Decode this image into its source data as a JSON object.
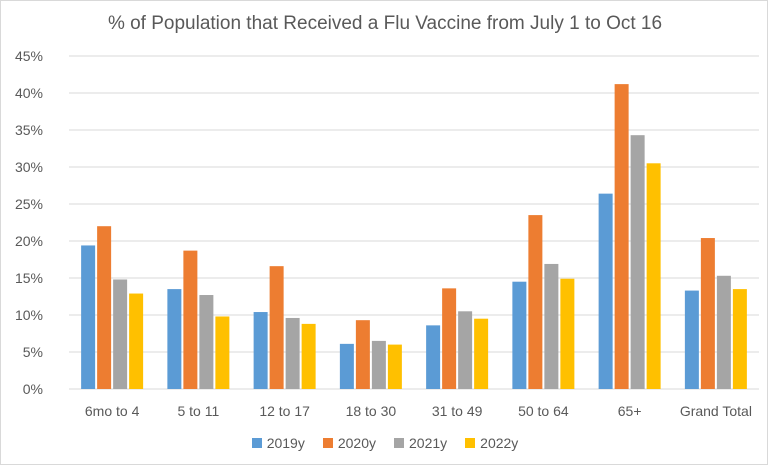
{
  "chart_data": {
    "type": "bar",
    "title": "% of Population that Received a Flu Vaccine from July 1 to Oct 16",
    "xlabel": "",
    "ylabel": "",
    "categories": [
      "6mo to 4",
      "5 to 11",
      "12 to 17",
      "18 to 30",
      "31 to 49",
      "50 to 64",
      "65+",
      "Grand Total"
    ],
    "series": [
      {
        "name": "2019y",
        "color": "#5B9BD5",
        "values": [
          19.4,
          13.5,
          10.4,
          6.1,
          8.6,
          14.5,
          26.4,
          13.3
        ]
      },
      {
        "name": "2020y",
        "color": "#ED7D31",
        "values": [
          22.0,
          18.7,
          16.6,
          9.3,
          13.6,
          23.5,
          41.2,
          20.4
        ]
      },
      {
        "name": "2021y",
        "color": "#A5A5A5",
        "values": [
          14.8,
          12.7,
          9.6,
          6.5,
          10.5,
          16.9,
          34.3,
          15.3
        ]
      },
      {
        "name": "2022y",
        "color": "#FFC000",
        "values": [
          12.9,
          9.8,
          8.8,
          6.0,
          9.5,
          14.9,
          30.5,
          13.5
        ]
      }
    ],
    "ylim": [
      0,
      45
    ],
    "yticks": [
      "0%",
      "5%",
      "10%",
      "15%",
      "20%",
      "25%",
      "30%",
      "35%",
      "40%",
      "45%"
    ],
    "grid": true,
    "legend": "bottom"
  }
}
